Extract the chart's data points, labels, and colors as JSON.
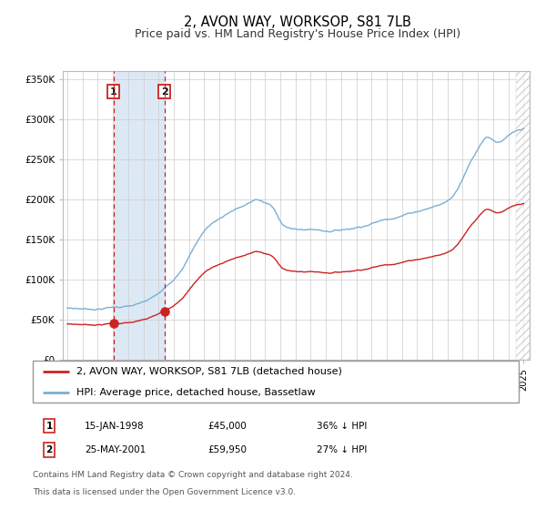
{
  "title": "2, AVON WAY, WORKSOP, S81 7LB",
  "subtitle": "Price paid vs. HM Land Registry's House Price Index (HPI)",
  "title_fontsize": 10.5,
  "subtitle_fontsize": 9,
  "hpi_color": "#7bafd4",
  "sale_color": "#cc2222",
  "background_color": "#ffffff",
  "grid_color": "#cccccc",
  "shade_color": "#dce9f5",
  "dashed_line_color": "#cc2222",
  "legend_entries": [
    "2, AVON WAY, WORKSOP, S81 7LB (detached house)",
    "HPI: Average price, detached house, Bassetlaw"
  ],
  "transaction_1_date": "15-JAN-1998",
  "transaction_1_price": 45000,
  "transaction_1_hpi_pct": "36% ↓ HPI",
  "transaction_1_x": 1998.04,
  "transaction_2_date": "25-MAY-2001",
  "transaction_2_price": 59950,
  "transaction_2_hpi_pct": "27% ↓ HPI",
  "transaction_2_x": 2001.38,
  "footer": "Contains HM Land Registry data © Crown copyright and database right 2024.\nThis data is licensed under the Open Government Licence v3.0.",
  "ylim": [
    0,
    360000
  ],
  "xlim_start": 1994.7,
  "xlim_end": 2025.4,
  "yticks": [
    0,
    50000,
    100000,
    150000,
    200000,
    250000,
    300000,
    350000
  ],
  "ytick_labels": [
    "£0",
    "£50K",
    "£100K",
    "£150K",
    "£200K",
    "£250K",
    "£300K",
    "£350K"
  ],
  "xticks": [
    1995,
    1996,
    1997,
    1998,
    1999,
    2000,
    2001,
    2002,
    2003,
    2004,
    2005,
    2006,
    2007,
    2008,
    2009,
    2010,
    2011,
    2012,
    2013,
    2014,
    2015,
    2016,
    2017,
    2018,
    2019,
    2020,
    2021,
    2022,
    2023,
    2024,
    2025
  ]
}
